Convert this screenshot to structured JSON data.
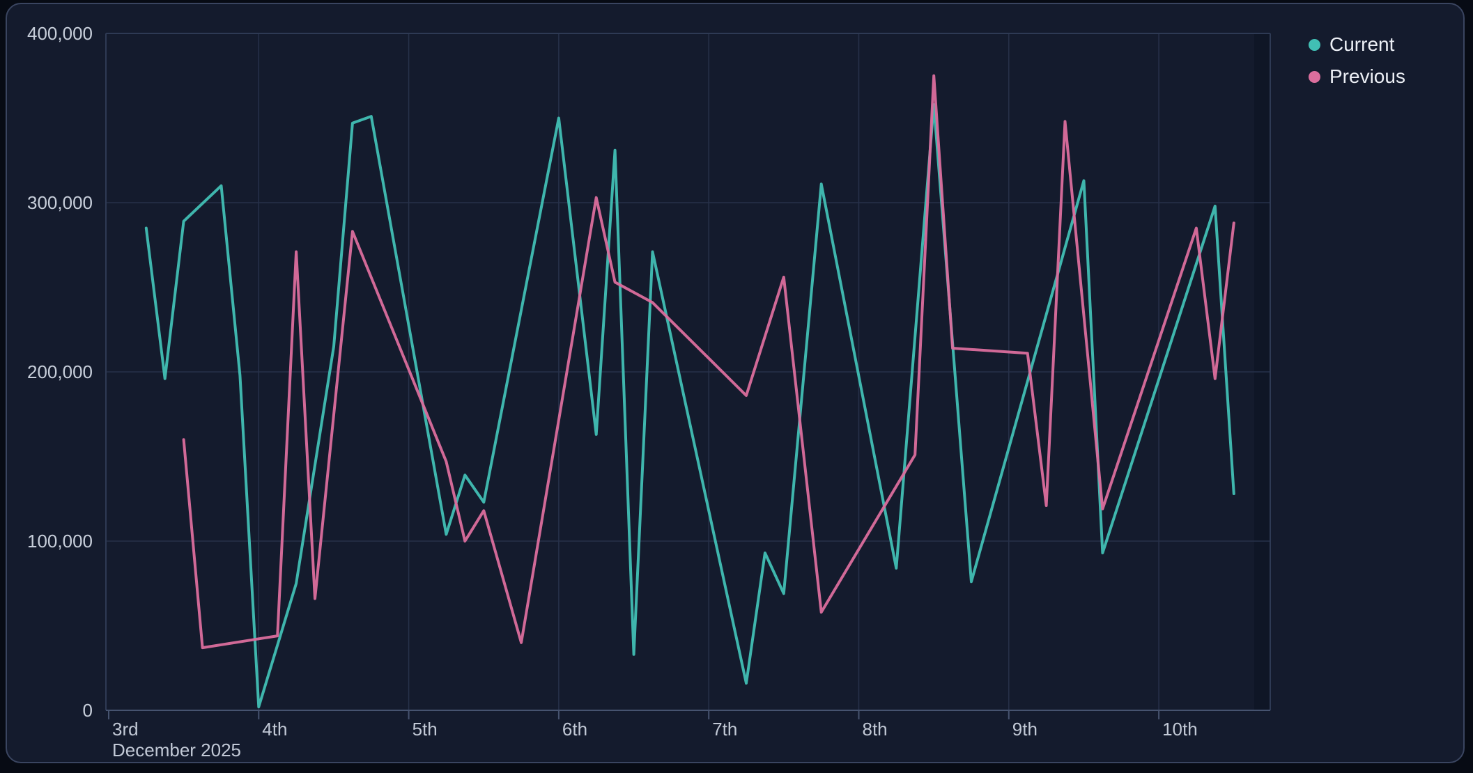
{
  "window": {
    "page_background": "#070B14",
    "card_background": "#141B2D",
    "card_border_color": "#3A4560",
    "gridline_color": "#27314A",
    "frame_color": "#2E3A54",
    "axis_color": "#46536F",
    "label_color": "#C2C9D6",
    "edge_band_color": "#0E1524"
  },
  "chart_data": {
    "type": "line",
    "title": "",
    "x_axis": {
      "tick_labels": [
        "3rd",
        "4th",
        "5th",
        "6th",
        "7th",
        "8th",
        "9th",
        "10th"
      ],
      "context_label": "December 2025",
      "domain_days": [
        3,
        10.75
      ],
      "grid": true
    },
    "y_axis": {
      "tick_labels": [
        "0",
        "100,000",
        "200,000",
        "300,000",
        "400,000"
      ],
      "min": 0,
      "max": 400000,
      "tick_step": 100000,
      "grid": true
    },
    "legend": {
      "position": "top-right",
      "entries": [
        {
          "label": "Current",
          "color": "#41BFB4"
        },
        {
          "label": "Previous",
          "color": "#DB6E9D"
        }
      ]
    },
    "series": [
      {
        "name": "Current",
        "color": "#41BFB4",
        "points": [
          {
            "x": 3.25,
            "y": 285000
          },
          {
            "x": 3.375,
            "y": 196000
          },
          {
            "x": 3.5,
            "y": 289000
          },
          {
            "x": 3.75,
            "y": 310000
          },
          {
            "x": 3.875,
            "y": 198000
          },
          {
            "x": 4.0,
            "y": 2000
          },
          {
            "x": 4.25,
            "y": 75000
          },
          {
            "x": 4.5,
            "y": 215000
          },
          {
            "x": 4.625,
            "y": 347000
          },
          {
            "x": 4.75,
            "y": 351000
          },
          {
            "x": 5.25,
            "y": 104000
          },
          {
            "x": 5.375,
            "y": 139000
          },
          {
            "x": 5.5,
            "y": 123000
          },
          {
            "x": 6.0,
            "y": 350000
          },
          {
            "x": 6.25,
            "y": 163000
          },
          {
            "x": 6.375,
            "y": 331000
          },
          {
            "x": 6.5,
            "y": 33000
          },
          {
            "x": 6.625,
            "y": 271000
          },
          {
            "x": 7.25,
            "y": 16000
          },
          {
            "x": 7.375,
            "y": 93000
          },
          {
            "x": 7.5,
            "y": 69000
          },
          {
            "x": 7.75,
            "y": 311000
          },
          {
            "x": 8.25,
            "y": 84000
          },
          {
            "x": 8.5,
            "y": 358000
          },
          {
            "x": 8.75,
            "y": 76000
          },
          {
            "x": 9.5,
            "y": 313000
          },
          {
            "x": 9.625,
            "y": 93000
          },
          {
            "x": 10.375,
            "y": 298000
          },
          {
            "x": 10.5,
            "y": 128000
          }
        ]
      },
      {
        "name": "Previous",
        "color": "#DB6E9D",
        "points": [
          {
            "x": 3.5,
            "y": 160000
          },
          {
            "x": 3.625,
            "y": 37000
          },
          {
            "x": 4.125,
            "y": 44000
          },
          {
            "x": 4.25,
            "y": 271000
          },
          {
            "x": 4.375,
            "y": 66000
          },
          {
            "x": 4.625,
            "y": 283000
          },
          {
            "x": 5.25,
            "y": 147000
          },
          {
            "x": 5.375,
            "y": 100000
          },
          {
            "x": 5.5,
            "y": 118000
          },
          {
            "x": 5.75,
            "y": 40000
          },
          {
            "x": 6.25,
            "y": 303000
          },
          {
            "x": 6.375,
            "y": 253000
          },
          {
            "x": 6.625,
            "y": 241000
          },
          {
            "x": 7.25,
            "y": 186000
          },
          {
            "x": 7.5,
            "y": 256000
          },
          {
            "x": 7.75,
            "y": 58000
          },
          {
            "x": 8.375,
            "y": 151000
          },
          {
            "x": 8.5,
            "y": 375000
          },
          {
            "x": 8.625,
            "y": 214000
          },
          {
            "x": 9.125,
            "y": 211000
          },
          {
            "x": 9.25,
            "y": 121000
          },
          {
            "x": 9.375,
            "y": 348000
          },
          {
            "x": 9.625,
            "y": 119000
          },
          {
            "x": 10.25,
            "y": 285000
          },
          {
            "x": 10.375,
            "y": 196000
          },
          {
            "x": 10.5,
            "y": 288000
          }
        ]
      }
    ]
  }
}
